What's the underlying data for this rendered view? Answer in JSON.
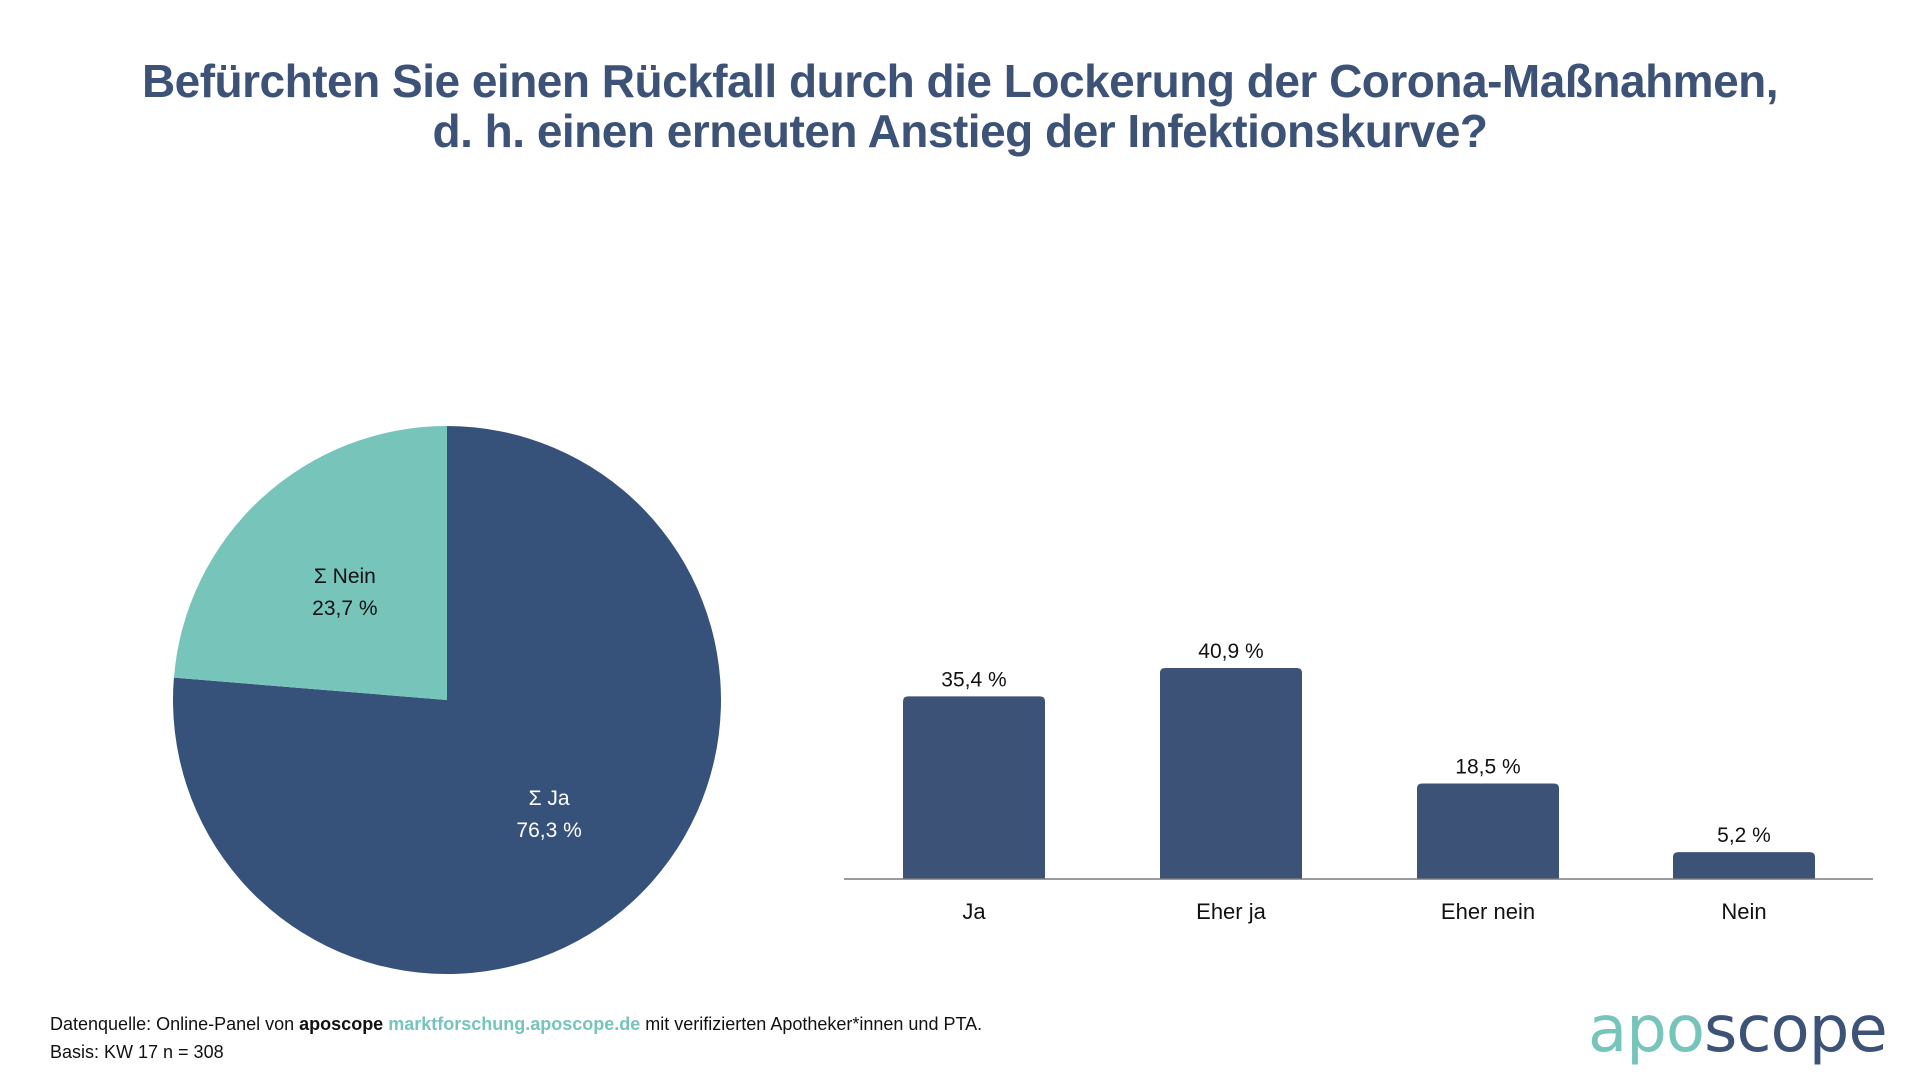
{
  "title": {
    "line1": "Befürchten Sie einen Rückfall durch die Lockerung der Corona-Maßnahmen,",
    "line2": "d. h. einen erneuten Anstieg der Infektionskurve?"
  },
  "colors": {
    "primary": "#37527a",
    "bar": "#3d5277",
    "teal": "#77c4bb",
    "title": "#3d5277"
  },
  "chart_data": [
    {
      "type": "pie",
      "title": "",
      "slices": [
        {
          "label": "Σ Ja",
          "value": 76.3,
          "display": "76,3 %",
          "color": "#37527a",
          "label_color": "#ffffff"
        },
        {
          "label": "Σ Nein",
          "value": 23.7,
          "display": "23,7 %",
          "color": "#77c4bb",
          "label_color": "#111111"
        }
      ],
      "start": "12 o'clock, clockwise"
    },
    {
      "type": "bar",
      "title": "",
      "categories": [
        "Ja",
        "Eher ja",
        "Eher nein",
        "Nein"
      ],
      "values": [
        35.4,
        40.9,
        18.5,
        5.2
      ],
      "value_labels": [
        "35,4 %",
        "40,9 %",
        "18,5 %",
        "5,2 %"
      ],
      "xlabel": "",
      "ylabel": "",
      "ylim": [
        0,
        45
      ],
      "grid": false,
      "unit": "%"
    }
  ],
  "footer": {
    "prefix": "Datenquelle: Online-Panel von ",
    "brand": "aposcope",
    "link": "marktforschung.aposcope.de",
    "suffix": " mit verifizierten Apotheker*innen und PTA.",
    "basis": "Basis: KW 17 n = 308"
  },
  "logo": {
    "part1": "apo",
    "part2": "scope"
  }
}
